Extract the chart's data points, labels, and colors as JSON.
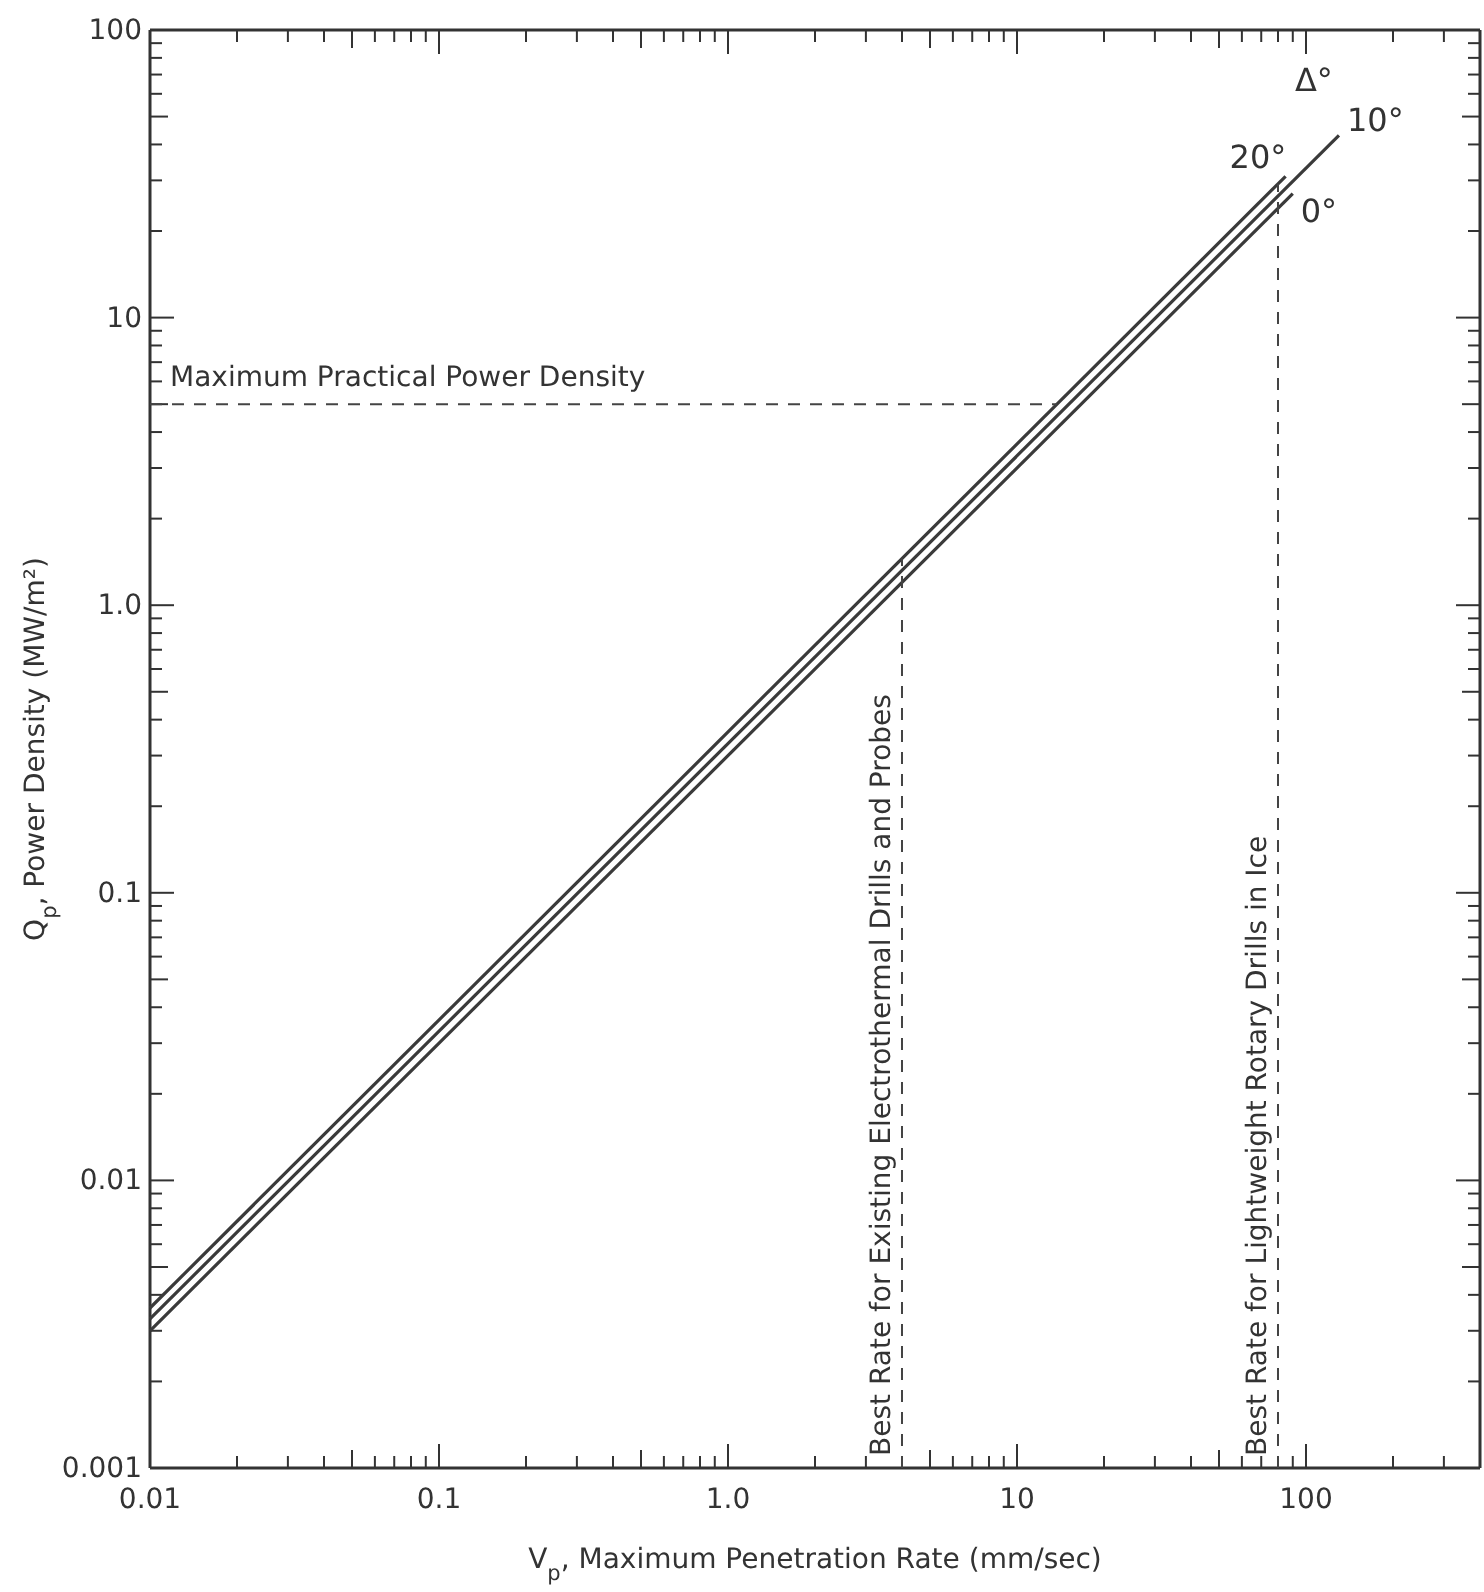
{
  "chart_data": {
    "type": "line",
    "xlabel": "V$_{p}$, Maximum Penetration Rate  (mm/sec)",
    "ylabel": "Q$_{p}$, Power Density   (MW/m²)",
    "legend_title": "Δ°",
    "log": "xy",
    "grid": false,
    "line_style": "solid",
    "xlim": [
      0.01,
      400
    ],
    "ylim": [
      0.001,
      100
    ],
    "xticks": [
      0.01,
      {
        "value": 0.02,
        "label": null
      },
      {
        "value": 0.03,
        "label": null
      },
      {
        "value": 0.04,
        "label": null
      },
      {
        "value": 0.05,
        "label": null
      },
      {
        "value": 0.06,
        "label": null
      },
      {
        "value": 0.07,
        "label": null
      },
      {
        "value": 0.08,
        "label": null
      },
      {
        "value": 0.09,
        "label": null
      },
      0.1,
      {
        "value": 0.2,
        "label": null
      },
      {
        "value": 0.3,
        "label": null
      },
      {
        "value": 0.4,
        "label": null
      },
      {
        "value": 0.5,
        "label": null
      },
      {
        "value": 0.6,
        "label": null
      },
      {
        "value": 0.7,
        "label": null
      },
      {
        "value": 0.8,
        "label": null
      },
      {
        "value": 0.9,
        "label": null
      },
      {
        "value": 1,
        "label": "1.0"
      },
      {
        "value": 2,
        "label": null
      },
      {
        "value": 3,
        "label": null
      },
      {
        "value": 4,
        "label": null
      },
      {
        "value": 5,
        "label": null
      },
      {
        "value": 6,
        "label": null
      },
      {
        "value": 7,
        "label": null
      },
      {
        "value": 8,
        "label": null
      },
      {
        "value": 9,
        "label": null
      },
      10,
      {
        "value": 20,
        "label": null
      },
      {
        "value": 30,
        "label": null
      },
      {
        "value": 40,
        "label": null
      },
      {
        "value": 50,
        "label": null
      },
      {
        "value": 60,
        "label": null
      },
      {
        "value": 70,
        "label": null
      },
      {
        "value": 80,
        "label": null
      },
      {
        "value": 90,
        "label": null
      },
      100,
      {
        "value": 200,
        "label": null
      },
      {
        "value": 300,
        "label": null
      },
      {
        "value": 400,
        "label": null
      }
    ],
    "yticks": [
      0.001,
      {
        "value": 0.002,
        "label": null
      },
      {
        "value": 0.003,
        "label": null
      },
      {
        "value": 0.004,
        "label": null
      },
      {
        "value": 0.005,
        "label": null
      },
      {
        "value": 0.006,
        "label": null
      },
      {
        "value": 0.007,
        "label": null
      },
      {
        "value": 0.008,
        "label": null
      },
      {
        "value": 0.009,
        "label": null
      },
      0.01,
      {
        "value": 0.02,
        "label": null
      },
      {
        "value": 0.03,
        "label": null
      },
      {
        "value": 0.04,
        "label": null
      },
      {
        "value": 0.05,
        "label": null
      },
      {
        "value": 0.06,
        "label": null
      },
      {
        "value": 0.07,
        "label": null
      },
      {
        "value": 0.08,
        "label": null
      },
      {
        "value": 0.09,
        "label": null
      },
      0.1,
      {
        "value": 0.2,
        "label": null
      },
      {
        "value": 0.3,
        "label": null
      },
      {
        "value": 0.4,
        "label": null
      },
      {
        "value": 0.5,
        "label": null
      },
      {
        "value": 0.6,
        "label": null
      },
      {
        "value": 0.7,
        "label": null
      },
      {
        "value": 0.8,
        "label": null
      },
      {
        "value": 0.9,
        "label": null
      },
      {
        "value": 1,
        "label": "1.0"
      },
      {
        "value": 2,
        "label": null
      },
      {
        "value": 3,
        "label": null
      },
      {
        "value": 4,
        "label": null
      },
      {
        "value": 5,
        "label": null
      },
      {
        "value": 6,
        "label": null
      },
      {
        "value": 7,
        "label": null
      },
      {
        "value": 8,
        "label": null
      },
      {
        "value": 9,
        "label": null
      },
      10,
      {
        "value": 20,
        "label": null
      },
      {
        "value": 30,
        "label": null
      },
      {
        "value": 40,
        "label": null
      },
      {
        "value": 50,
        "label": null
      },
      {
        "value": 60,
        "label": null
      },
      {
        "value": 70,
        "label": null
      },
      {
        "value": 80,
        "label": null
      },
      {
        "value": 90,
        "label": null
      },
      100
    ],
    "series": [
      {
        "name": "20°",
        "color": "#3a3a3a",
        "x": [
          0.01,
          85
        ],
        "values": [
          0.0036,
          31
        ]
      },
      {
        "name": "10°",
        "color": "#3a3a3a",
        "x": [
          0.01,
          130
        ],
        "values": [
          0.0033,
          43
        ]
      },
      {
        "name": "0°",
        "color": "#3a3a3a",
        "x": [
          0.01,
          90
        ],
        "values": [
          0.003,
          27
        ]
      }
    ],
    "ref_lines": [
      {
        "axis": "y",
        "value": 5,
        "label": "Maximum Practical Power Density",
        "line_style": "dashed",
        "color": "#444444"
      },
      {
        "axis": "x",
        "value": 4,
        "label": "Best Rate for Existing Electrothermal Drills and Probes",
        "line_style": "dashed",
        "color": "#444444"
      },
      {
        "axis": "x",
        "value": 80,
        "label": "Best Rate for Lightweight Rotary Drills in Ice",
        "line_style": "dashed",
        "color": "#444444"
      }
    ]
  }
}
